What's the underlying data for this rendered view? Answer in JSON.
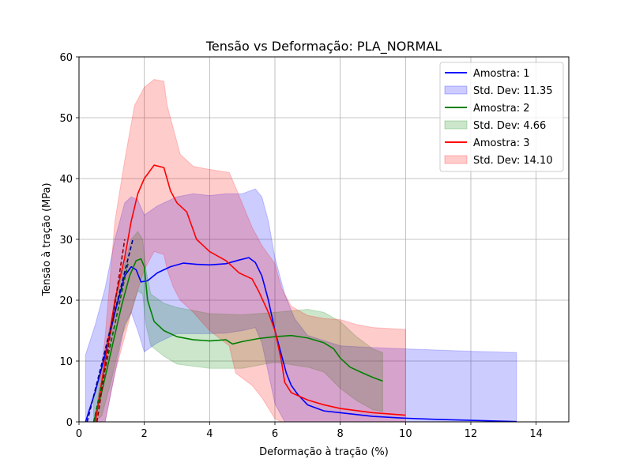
{
  "chart_data": {
    "type": "line",
    "title": "Tensão vs Deformação: PLA_NORMAL",
    "xlabel": "Deformação à tração (%)",
    "ylabel": "Tensão à tração (MPa)",
    "xlim": [
      0,
      15
    ],
    "ylim": [
      0,
      60
    ],
    "xticks": [
      0,
      2,
      4,
      6,
      8,
      10,
      12,
      14
    ],
    "yticks": [
      0,
      10,
      20,
      30,
      40,
      50,
      60
    ],
    "xtick_labels": [
      "0",
      "2",
      "4",
      "6",
      "8",
      "10",
      "12",
      "14"
    ],
    "ytick_labels": [
      "0",
      "10",
      "20",
      "30",
      "40",
      "50",
      "60"
    ],
    "grid": true,
    "legend_position": "top-right",
    "series": [
      {
        "name": "Amostra: 1",
        "color": "#0000ff",
        "x": [
          0.2,
          0.5,
          0.8,
          1.1,
          1.4,
          1.6,
          1.75,
          1.9,
          2.1,
          2.4,
          2.8,
          3.2,
          3.6,
          4.0,
          4.5,
          4.9,
          5.2,
          5.4,
          5.6,
          5.8,
          6.0,
          6.2,
          6.35,
          6.5,
          6.7,
          7.0,
          7.5,
          8.0,
          9.0,
          10.0,
          11.0,
          12.0,
          13.0,
          13.4
        ],
        "y": [
          0,
          5,
          11,
          18,
          24,
          25.5,
          25,
          23,
          23.2,
          24.5,
          25.5,
          26.1,
          25.9,
          25.8,
          26,
          26.6,
          27,
          26.2,
          24,
          20,
          15,
          11,
          8,
          6,
          4.5,
          2.8,
          1.8,
          1.5,
          0.9,
          0.6,
          0.4,
          0.25,
          0.1,
          0.05
        ]
      },
      {
        "name": "Std. Dev: 11.35",
        "color": "#0000ff",
        "x": [
          0.2,
          0.5,
          0.8,
          1.1,
          1.4,
          1.6,
          1.8,
          2.0,
          2.4,
          3.0,
          3.5,
          4.0,
          4.5,
          5.0,
          5.4,
          5.6,
          5.8,
          6.0,
          6.3,
          6.6,
          7.0,
          8.0,
          9.0,
          10.0,
          11.0,
          12.0,
          13.0,
          13.4
        ],
        "upper": [
          11.0,
          16.0,
          22.0,
          30.0,
          36.0,
          37.0,
          36.5,
          34.0,
          35.5,
          37.0,
          37.5,
          37.2,
          37.5,
          37.5,
          38.3,
          37.0,
          33.0,
          27.0,
          21.0,
          17.0,
          14.2,
          12.5,
          12.2,
          12.0,
          11.8,
          11.6,
          11.45,
          11.4
        ],
        "lower": [
          0.0,
          0.0,
          0.0,
          8.0,
          16.0,
          18.0,
          15.0,
          11.5,
          13.0,
          14.5,
          14.5,
          14.5,
          14.6,
          15.0,
          15.5,
          13.0,
          8.0,
          3.0,
          0.0,
          0.0,
          0.0,
          0.0,
          0.0,
          0.0,
          0.0,
          0.0,
          0.0,
          0.0
        ]
      },
      {
        "name": "Amostra: 2",
        "color": "#008000",
        "x": [
          0.45,
          0.7,
          1.0,
          1.3,
          1.55,
          1.75,
          1.9,
          2.0,
          2.1,
          2.3,
          2.6,
          3.0,
          3.5,
          4.0,
          4.5,
          4.7,
          5.0,
          5.5,
          6.0,
          6.5,
          7.0,
          7.5,
          7.8,
          8.0,
          8.3,
          8.7,
          9.0,
          9.3
        ],
        "y": [
          0,
          5,
          12,
          19,
          24,
          26.5,
          26.8,
          25.5,
          20,
          16.5,
          15,
          14,
          13.5,
          13.3,
          13.5,
          12.8,
          13.2,
          13.7,
          14,
          14.2,
          13.8,
          13,
          12,
          10.5,
          9,
          8,
          7.3,
          6.7
        ]
      },
      {
        "name": "Std. Dev: 4.66",
        "color": "#008000",
        "x": [
          0.45,
          0.7,
          1.0,
          1.3,
          1.6,
          1.8,
          1.95,
          2.05,
          2.2,
          2.6,
          3.0,
          4.0,
          5.0,
          6.0,
          7.0,
          7.5,
          8.0,
          8.5,
          9.0,
          9.3
        ],
        "upper": [
          4.0,
          9.5,
          17.0,
          24.0,
          30.0,
          31.3,
          30.0,
          25.0,
          21.0,
          19.5,
          18.8,
          17.8,
          17.6,
          18.0,
          18.5,
          18.0,
          16.5,
          14.0,
          12.0,
          11.4
        ],
        "lower": [
          0.0,
          1.0,
          7.0,
          14.0,
          18.0,
          21.5,
          21.0,
          16.0,
          12.5,
          10.8,
          9.5,
          8.8,
          8.8,
          9.8,
          9.0,
          8.2,
          5.5,
          3.5,
          2.0,
          1.7
        ]
      },
      {
        "name": "Amostra: 3",
        "color": "#ff0000",
        "x": [
          0.5,
          0.8,
          1.1,
          1.4,
          1.6,
          1.8,
          2.0,
          2.3,
          2.6,
          2.8,
          3.0,
          3.3,
          3.6,
          4.0,
          4.5,
          4.9,
          5.3,
          5.5,
          5.8,
          6.0,
          6.2,
          6.3,
          6.5,
          7.0,
          7.5,
          8.0,
          9.0,
          10.0
        ],
        "y": [
          0,
          10,
          20,
          27,
          33,
          37.5,
          40,
          42.2,
          41.8,
          38,
          36,
          34.5,
          30,
          28,
          26.5,
          24.5,
          23.5,
          21.5,
          18,
          15,
          10,
          6.5,
          4.8,
          3.6,
          2.8,
          2.2,
          1.5,
          1.1
        ]
      },
      {
        "name": "Std. Dev: 14.10",
        "color": "#ff0000",
        "x": [
          0.5,
          0.8,
          1.1,
          1.4,
          1.7,
          2.0,
          2.3,
          2.6,
          2.7,
          2.9,
          3.1,
          3.5,
          4.0,
          4.6,
          4.8,
          5.3,
          5.6,
          6.0,
          6.2,
          6.5,
          7.0,
          7.5,
          8.0,
          8.5,
          9.0,
          10.0
        ],
        "upper": [
          0.0,
          14.0,
          33.0,
          43.0,
          52.0,
          55.0,
          56.3,
          56.0,
          52.0,
          48.0,
          44.0,
          42.0,
          41.5,
          41.0,
          38.5,
          32.0,
          29.0,
          26.0,
          22.0,
          19.0,
          17.5,
          17.0,
          16.8,
          16.0,
          15.5,
          15.2
        ],
        "lower": [
          0.0,
          0.0,
          8.0,
          14.0,
          20.0,
          25.0,
          28.0,
          27.5,
          25.0,
          22.0,
          20.0,
          18.0,
          15.0,
          12.5,
          8.0,
          6.0,
          4.0,
          0.5,
          0.0,
          0.0,
          0.0,
          0.0,
          0.0,
          0.0,
          0.0,
          0.0
        ]
      }
    ],
    "fit_lines": [
      {
        "color": "#00008b",
        "x": [
          0.25,
          1.65
        ],
        "y": [
          0,
          30
        ]
      },
      {
        "color": "#006400",
        "x": [
          0.45,
          1.5
        ],
        "y": [
          0,
          26
        ]
      },
      {
        "color": "#8b0000",
        "x": [
          0.55,
          1.4
        ],
        "y": [
          0,
          30
        ]
      }
    ]
  }
}
